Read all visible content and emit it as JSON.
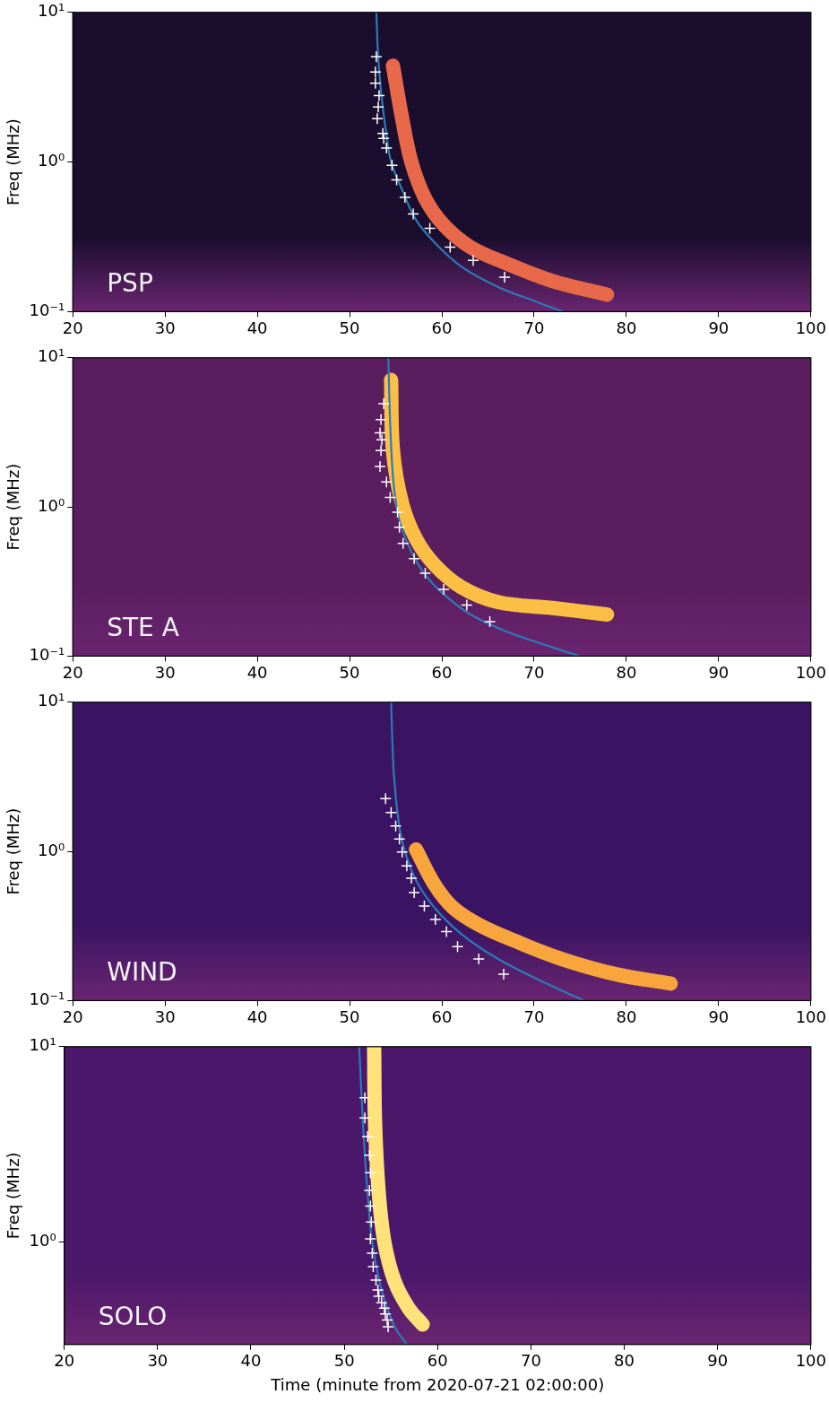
{
  "chart_data": [
    {
      "type": "scatter",
      "annotation": "PSP",
      "y_label": "Freq (MHz)",
      "log": "y",
      "grid": false,
      "tick_labels": true,
      "xlim": [
        20,
        100
      ],
      "xticks": [
        20,
        30,
        40,
        50,
        60,
        70,
        80,
        90,
        100
      ],
      "ylim": [
        0.1,
        10
      ],
      "yticks": [
        {
          "value": 0.1,
          "label": "10⁻¹"
        },
        {
          "value": 1,
          "label": "10⁰"
        },
        {
          "value": 10,
          "label": "10¹"
        }
      ],
      "series": [
        {
          "type": "line",
          "line_style": "thick",
          "color": "#e8684a",
          "x": [
            54.7,
            55.7,
            56.7,
            58.2,
            60.2,
            63.1,
            67.0,
            72.0,
            77.9
          ],
          "values": [
            4.4,
            1.95,
            1.0,
            0.57,
            0.38,
            0.27,
            0.21,
            0.16,
            0.13
          ]
        },
        {
          "type": "line",
          "line_style": "solid",
          "color": "#2b7bb9",
          "x": [
            52.9,
            53.1,
            53.4,
            54.0,
            54.5,
            55.7,
            57.2,
            59.2,
            62.1,
            66.1,
            70.0,
            73.1
          ],
          "values": [
            10,
            5,
            3,
            1.5,
            1.0,
            0.65,
            0.41,
            0.29,
            0.2,
            0.146,
            0.118,
            0.1
          ]
        },
        {
          "type": "scatter",
          "marker": "cross",
          "color": "#ffffff",
          "x": [
            52.9,
            52.8,
            52.8,
            53.2,
            53.1,
            53.0,
            53.6,
            53.7,
            54.0,
            54.6,
            55.1,
            56.0,
            56.9,
            58.7,
            60.9,
            63.4,
            66.8
          ],
          "values": [
            5.06,
            4.0,
            3.36,
            2.78,
            2.33,
            1.95,
            1.55,
            1.44,
            1.24,
            0.95,
            0.76,
            0.58,
            0.45,
            0.36,
            0.27,
            0.22,
            0.17
          ]
        }
      ]
    },
    {
      "type": "scatter",
      "annotation": "STE A",
      "y_label": "Freq (MHz)",
      "log": "y",
      "grid": false,
      "tick_labels": true,
      "xlim": [
        20,
        100
      ],
      "xticks": [
        20,
        30,
        40,
        50,
        60,
        70,
        80,
        90,
        100
      ],
      "ylim": [
        0.1,
        10
      ],
      "yticks": [
        {
          "value": 0.1,
          "label": "10⁻¹"
        },
        {
          "value": 1,
          "label": "10⁰"
        },
        {
          "value": 10,
          "label": "10¹"
        }
      ],
      "series": [
        {
          "type": "line",
          "line_style": "thick",
          "color": "#fbbf45",
          "x": [
            54.5,
            54.7,
            55.7,
            57.2,
            59.2,
            62.1,
            66.1,
            72.0,
            77.9
          ],
          "values": [
            7.1,
            2.39,
            1.05,
            0.61,
            0.41,
            0.29,
            0.23,
            0.21,
            0.19
          ]
        },
        {
          "type": "line",
          "line_style": "solid",
          "color": "#2b7bb9",
          "x": [
            54.2,
            54.4,
            54.7,
            55.1,
            55.7,
            56.7,
            58.2,
            60.2,
            63.1,
            67.0,
            71.0,
            74.9
          ],
          "values": [
            10,
            3.6,
            1.59,
            1.0,
            0.7,
            0.5,
            0.35,
            0.26,
            0.19,
            0.146,
            0.12,
            0.1
          ]
        },
        {
          "type": "scatter",
          "marker": "cross",
          "color": "#ffffff",
          "x": [
            53.7,
            53.4,
            53.3,
            53.5,
            53.4,
            53.3,
            54.0,
            54.4,
            55.2,
            55.4,
            55.8,
            57.0,
            58.2,
            60.2,
            62.7,
            65.2
          ],
          "values": [
            4.92,
            3.85,
            3.14,
            2.82,
            2.39,
            1.87,
            1.47,
            1.16,
            0.92,
            0.73,
            0.57,
            0.45,
            0.36,
            0.28,
            0.22,
            0.17
          ]
        }
      ]
    },
    {
      "type": "scatter",
      "annotation": "WIND",
      "y_label": "Freq (MHz)",
      "log": "y",
      "grid": false,
      "tick_labels": true,
      "xlim": [
        20,
        100
      ],
      "xticks": [
        20,
        30,
        40,
        50,
        60,
        70,
        80,
        90,
        100
      ],
      "ylim": [
        0.1,
        10
      ],
      "yticks": [
        {
          "value": 0.1,
          "label": "10⁻¹"
        },
        {
          "value": 1,
          "label": "10⁰"
        },
        {
          "value": 10,
          "label": "10¹"
        }
      ],
      "series": [
        {
          "type": "line",
          "line_style": "thick",
          "color": "#f7a53c",
          "x": [
            57.2,
            59.2,
            61.2,
            64.1,
            68.0,
            73.0,
            78.9,
            84.8
          ],
          "values": [
            1.03,
            0.6,
            0.42,
            0.32,
            0.25,
            0.19,
            0.15,
            0.13
          ]
        },
        {
          "type": "line",
          "line_style": "solid",
          "color": "#2b7bb9",
          "x": [
            54.5,
            54.8,
            55.4,
            56.0,
            57.2,
            59.2,
            62.1,
            66.1,
            71.0,
            75.4
          ],
          "values": [
            10,
            3.27,
            1.44,
            1.0,
            0.64,
            0.42,
            0.28,
            0.19,
            0.133,
            0.1
          ]
        },
        {
          "type": "scatter",
          "marker": "cross",
          "color": "#ffffff",
          "x": [
            53.9,
            54.5,
            55.0,
            55.4,
            55.7,
            56.2,
            56.7,
            57.0,
            58.1,
            59.3,
            60.5,
            61.7,
            64.0,
            66.7
          ],
          "values": [
            2.26,
            1.82,
            1.48,
            1.21,
            0.99,
            0.8,
            0.66,
            0.53,
            0.43,
            0.35,
            0.29,
            0.23,
            0.19,
            0.15
          ]
        }
      ]
    },
    {
      "type": "scatter",
      "annotation": "SOLO",
      "y_label": "Freq (MHz)",
      "x_label": "Time (minute from 2020-07-21 02:00:00)",
      "log": "y",
      "grid": false,
      "tick_labels": true,
      "xlim": [
        20,
        100
      ],
      "xticks": [
        20,
        30,
        40,
        50,
        60,
        70,
        80,
        90,
        100
      ],
      "ylim": [
        0.3,
        10
      ],
      "yticks": [
        {
          "value": 1,
          "label": "10⁰"
        },
        {
          "value": 10,
          "label": "10¹"
        }
      ],
      "series": [
        {
          "type": "line",
          "line_style": "thick",
          "color": "#ffe27a",
          "x": [
            53.2,
            53.3,
            53.7,
            54.3,
            55.4,
            56.9,
            58.4
          ],
          "values": [
            10,
            4.06,
            1.77,
            1.0,
            0.63,
            0.46,
            0.38
          ]
        },
        {
          "type": "line",
          "line_style": "solid",
          "color": "#2b7bb9",
          "x": [
            51.6,
            52.0,
            52.5,
            53.0,
            54.0,
            55.4,
            56.7
          ],
          "values": [
            10,
            4.06,
            1.77,
            1.0,
            0.57,
            0.37,
            0.3
          ]
        },
        {
          "type": "scatter",
          "marker": "cross",
          "color": "#ffffff",
          "x": [
            52.2,
            52.2,
            52.5,
            52.7,
            52.8,
            52.7,
            52.8,
            52.9,
            52.8,
            53.0,
            53.1,
            53.4,
            53.6,
            53.7,
            54.0,
            54.3,
            54.4,
            54.6,
            54.7
          ],
          "values": [
            5.48,
            4.32,
            3.47,
            2.79,
            2.27,
            1.84,
            1.53,
            1.27,
            1.04,
            0.88,
            0.75,
            0.64,
            0.57,
            0.53,
            0.49,
            0.46,
            0.43,
            0.4,
            0.37
          ]
        }
      ]
    }
  ]
}
